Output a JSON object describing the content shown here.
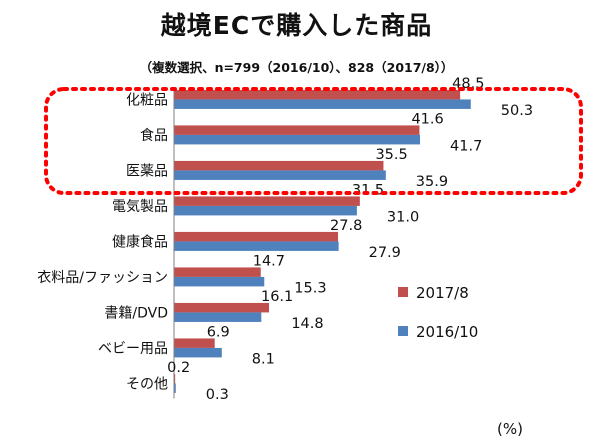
{
  "chart_data": {
    "type": "bar",
    "orientation": "horizontal",
    "title": "越境ECで購入した商品",
    "subtitle": "（複数選択、n=799（2016/10）、828（2017/8））",
    "categories": [
      "化粧品",
      "食品",
      "医薬品",
      "電気製品",
      "健康食品",
      "衣料品/ファッション",
      "書籍/DVD",
      "ベビー用品",
      "その他"
    ],
    "series": [
      {
        "name": "2017/8",
        "color": "#c0504d",
        "values": [
          48.5,
          41.6,
          35.5,
          31.5,
          27.8,
          14.7,
          16.1,
          6.9,
          0.2
        ]
      },
      {
        "name": "2016/10",
        "color": "#4f81bd",
        "values": [
          50.3,
          41.7,
          35.9,
          31.0,
          27.9,
          15.3,
          14.8,
          8.1,
          0.3
        ]
      }
    ],
    "unit_label": "(%)",
    "xlim": [
      0,
      65
    ],
    "legend_position": "lower-right",
    "grid": false,
    "highlight": {
      "categories": [
        "化粧品",
        "食品",
        "医薬品"
      ],
      "color": "#ff0000",
      "style": "dotted-rounded-box"
    }
  }
}
